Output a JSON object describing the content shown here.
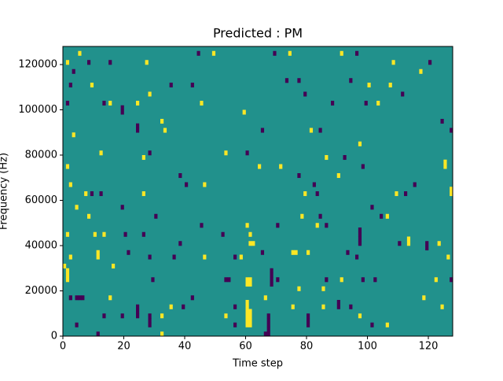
{
  "chart_data": {
    "type": "heatmap",
    "title": "Predicted : PM",
    "xlabel": "Time step",
    "ylabel": "Frequency (Hz)",
    "xlim": [
      0,
      128
    ],
    "ylim": [
      0,
      128000
    ],
    "xticks": [
      0,
      20,
      40,
      60,
      80,
      100,
      120
    ],
    "yticks": [
      0,
      20000,
      40000,
      60000,
      80000,
      100000,
      120000
    ],
    "grid_shape": [
      64,
      128
    ],
    "vlim": [
      -1,
      1
    ],
    "colormap": [
      "#440154",
      "#21918c",
      "#fde725"
    ],
    "background_value": 0,
    "cells": [
      [
        5,
        124000,
        1
      ],
      [
        1,
        120000,
        1
      ],
      [
        27,
        120000,
        1
      ],
      [
        49,
        124000,
        1
      ],
      [
        74,
        124000,
        1
      ],
      [
        91,
        124000,
        1
      ],
      [
        108,
        120000,
        1
      ],
      [
        117,
        116000,
        1
      ],
      [
        9,
        110000,
        1
      ],
      [
        28,
        106000,
        1
      ],
      [
        100,
        110000,
        1
      ],
      [
        107,
        110000,
        1
      ],
      [
        15,
        102000,
        1
      ],
      [
        45,
        102000,
        1
      ],
      [
        103,
        102000,
        1
      ],
      [
        24,
        102000,
        1
      ],
      [
        59,
        98000,
        1
      ],
      [
        3,
        88000,
        1
      ],
      [
        32,
        94000,
        1
      ],
      [
        33,
        90000,
        1
      ],
      [
        81,
        90000,
        1
      ],
      [
        97,
        84000,
        1
      ],
      [
        12,
        80000,
        1
      ],
      [
        53,
        80000,
        1
      ],
      [
        86,
        78000,
        1
      ],
      [
        26,
        78000,
        1
      ],
      [
        125,
        74000,
        1
      ],
      [
        125,
        76000,
        1
      ],
      [
        64,
        74000,
        1
      ],
      [
        71,
        74000,
        1
      ],
      [
        1,
        74000,
        1
      ],
      [
        46,
        66000,
        1
      ],
      [
        90,
        70000,
        1
      ],
      [
        127,
        62000,
        1
      ],
      [
        127,
        64000,
        1
      ],
      [
        2,
        66000,
        1
      ],
      [
        7,
        62000,
        1
      ],
      [
        26,
        62000,
        1
      ],
      [
        79,
        62000,
        1
      ],
      [
        109,
        62000,
        1
      ],
      [
        4,
        56000,
        1
      ],
      [
        78,
        52000,
        1
      ],
      [
        106,
        52000,
        1
      ],
      [
        8,
        52000,
        1
      ],
      [
        60,
        48000,
        1
      ],
      [
        83,
        48000,
        1
      ],
      [
        1,
        44000,
        1
      ],
      [
        10,
        44000,
        1
      ],
      [
        13,
        44000,
        1
      ],
      [
        61,
        44000,
        1
      ],
      [
        113,
        42000,
        1
      ],
      [
        113,
        40000,
        1
      ],
      [
        123,
        40000,
        1
      ],
      [
        61,
        40000,
        1
      ],
      [
        62,
        40000,
        1
      ],
      [
        11,
        34000,
        1
      ],
      [
        11,
        36000,
        1
      ],
      [
        75,
        36000,
        1
      ],
      [
        76,
        36000,
        1
      ],
      [
        80,
        36000,
        1
      ],
      [
        2,
        34000,
        1
      ],
      [
        46,
        34000,
        1
      ],
      [
        58,
        34000,
        1
      ],
      [
        126,
        34000,
        1
      ],
      [
        0,
        30000,
        1
      ],
      [
        16,
        30000,
        1
      ],
      [
        1,
        24000,
        1
      ],
      [
        1,
        26000,
        1
      ],
      [
        1,
        28000,
        1
      ],
      [
        60,
        22000,
        1
      ],
      [
        61,
        22000,
        1
      ],
      [
        60,
        24000,
        1
      ],
      [
        61,
        24000,
        1
      ],
      [
        122,
        24000,
        1
      ],
      [
        91,
        24000,
        1
      ],
      [
        77,
        20000,
        1
      ],
      [
        85,
        20000,
        1
      ],
      [
        15,
        16000,
        1
      ],
      [
        66,
        16000,
        1
      ],
      [
        118,
        16000,
        1
      ],
      [
        60,
        4000,
        1
      ],
      [
        61,
        4000,
        1
      ],
      [
        60,
        6000,
        1
      ],
      [
        61,
        6000,
        1
      ],
      [
        60,
        8000,
        1
      ],
      [
        61,
        8000,
        1
      ],
      [
        60,
        10000,
        1
      ],
      [
        61,
        10000,
        1
      ],
      [
        60,
        12000,
        1
      ],
      [
        60,
        14000,
        1
      ],
      [
        35,
        12000,
        1
      ],
      [
        75,
        12000,
        1
      ],
      [
        85,
        12000,
        1
      ],
      [
        124,
        12000,
        1
      ],
      [
        32,
        8000,
        1
      ],
      [
        53,
        8000,
        1
      ],
      [
        97,
        8000,
        1
      ],
      [
        106,
        4000,
        1
      ],
      [
        32,
        0,
        1
      ],
      [
        15,
        120000,
        -1
      ],
      [
        44,
        124000,
        -1
      ],
      [
        69,
        124000,
        -1
      ],
      [
        96,
        124000,
        -1
      ],
      [
        120,
        120000,
        -1
      ],
      [
        8,
        120000,
        -1
      ],
      [
        2,
        110000,
        -1
      ],
      [
        35,
        110000,
        -1
      ],
      [
        42,
        110000,
        -1
      ],
      [
        77,
        112000,
        -1
      ],
      [
        94,
        112000,
        -1
      ],
      [
        73,
        112000,
        -1
      ],
      [
        3,
        116000,
        -1
      ],
      [
        13,
        102000,
        -1
      ],
      [
        1,
        102000,
        -1
      ],
      [
        88,
        102000,
        -1
      ],
      [
        99,
        102000,
        -1
      ],
      [
        111,
        106000,
        -1
      ],
      [
        79,
        106000,
        -1
      ],
      [
        19,
        98000,
        -1
      ],
      [
        19,
        100000,
        -1
      ],
      [
        24,
        90000,
        -1
      ],
      [
        24,
        92000,
        -1
      ],
      [
        65,
        90000,
        -1
      ],
      [
        84,
        90000,
        -1
      ],
      [
        127,
        90000,
        -1
      ],
      [
        124,
        94000,
        -1
      ],
      [
        28,
        80000,
        -1
      ],
      [
        60,
        80000,
        -1
      ],
      [
        92,
        78000,
        -1
      ],
      [
        98,
        74000,
        -1
      ],
      [
        38,
        70000,
        -1
      ],
      [
        77,
        70000,
        -1
      ],
      [
        40,
        66000,
        -1
      ],
      [
        82,
        66000,
        -1
      ],
      [
        115,
        66000,
        -1
      ],
      [
        9,
        62000,
        -1
      ],
      [
        12,
        62000,
        -1
      ],
      [
        83,
        62000,
        -1
      ],
      [
        112,
        62000,
        -1
      ],
      [
        19,
        56000,
        -1
      ],
      [
        101,
        56000,
        -1
      ],
      [
        30,
        52000,
        -1
      ],
      [
        84,
        52000,
        -1
      ],
      [
        104,
        52000,
        -1
      ],
      [
        45,
        48000,
        -1
      ],
      [
        70,
        48000,
        -1
      ],
      [
        86,
        48000,
        -1
      ],
      [
        97,
        40000,
        -1
      ],
      [
        97,
        42000,
        -1
      ],
      [
        97,
        44000,
        -1
      ],
      [
        97,
        46000,
        -1
      ],
      [
        20,
        44000,
        -1
      ],
      [
        26,
        44000,
        -1
      ],
      [
        52,
        44000,
        -1
      ],
      [
        38,
        40000,
        -1
      ],
      [
        110,
        40000,
        -1
      ],
      [
        119,
        38000,
        -1
      ],
      [
        119,
        40000,
        -1
      ],
      [
        21,
        36000,
        -1
      ],
      [
        65,
        36000,
        -1
      ],
      [
        93,
        36000,
        -1
      ],
      [
        28,
        34000,
        -1
      ],
      [
        36,
        34000,
        -1
      ],
      [
        56,
        34000,
        -1
      ],
      [
        96,
        34000,
        -1
      ],
      [
        68,
        22000,
        -1
      ],
      [
        68,
        24000,
        -1
      ],
      [
        68,
        26000,
        -1
      ],
      [
        68,
        28000,
        -1
      ],
      [
        53,
        24000,
        -1
      ],
      [
        54,
        24000,
        -1
      ],
      [
        29,
        24000,
        -1
      ],
      [
        86,
        24000,
        -1
      ],
      [
        98,
        24000,
        -1
      ],
      [
        102,
        24000,
        -1
      ],
      [
        70,
        24000,
        -1
      ],
      [
        127,
        24000,
        -1
      ],
      [
        4,
        16000,
        -1
      ],
      [
        5,
        16000,
        -1
      ],
      [
        6,
        16000,
        -1
      ],
      [
        2,
        16000,
        -1
      ],
      [
        24,
        8000,
        -1
      ],
      [
        24,
        10000,
        -1
      ],
      [
        24,
        12000,
        -1
      ],
      [
        39,
        12000,
        -1
      ],
      [
        42,
        16000,
        -1
      ],
      [
        56,
        12000,
        -1
      ],
      [
        80,
        4000,
        -1
      ],
      [
        80,
        6000,
        -1
      ],
      [
        80,
        8000,
        -1
      ],
      [
        90,
        12000,
        -1
      ],
      [
        90,
        14000,
        -1
      ],
      [
        94,
        12000,
        -1
      ],
      [
        13,
        8000,
        -1
      ],
      [
        19,
        8000,
        -1
      ],
      [
        67,
        0,
        -1
      ],
      [
        67,
        2000,
        -1
      ],
      [
        67,
        4000,
        -1
      ],
      [
        67,
        6000,
        -1
      ],
      [
        67,
        8000,
        -1
      ],
      [
        4,
        4000,
        -1
      ],
      [
        28,
        4000,
        -1
      ],
      [
        28,
        6000,
        -1
      ],
      [
        28,
        8000,
        -1
      ],
      [
        101,
        4000,
        -1
      ],
      [
        11,
        0,
        -1
      ],
      [
        56,
        4000,
        -1
      ],
      [
        66,
        0,
        -1
      ]
    ]
  }
}
